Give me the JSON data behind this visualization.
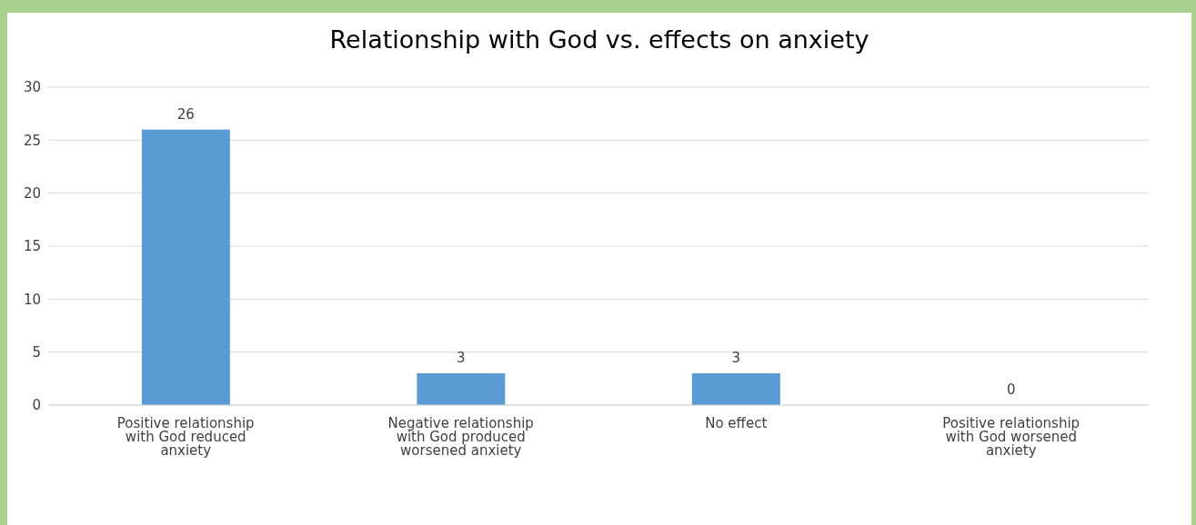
{
  "chart_data": {
    "type": "bar",
    "title": "Relationship with God vs. effects on anxiety",
    "categories": [
      "Positive relationship with God reduced anxiety",
      "Negative relationship with God produced worsened anxiety",
      "No effect",
      "Positive relationship with God worsened anxiety"
    ],
    "values": [
      26,
      3,
      3,
      0
    ],
    "color": "#5b9bd5",
    "ylim": [
      0,
      30
    ],
    "yticks": [
      0,
      5,
      10,
      15,
      20,
      25,
      30
    ],
    "grid": "y",
    "data_labels": true
  }
}
